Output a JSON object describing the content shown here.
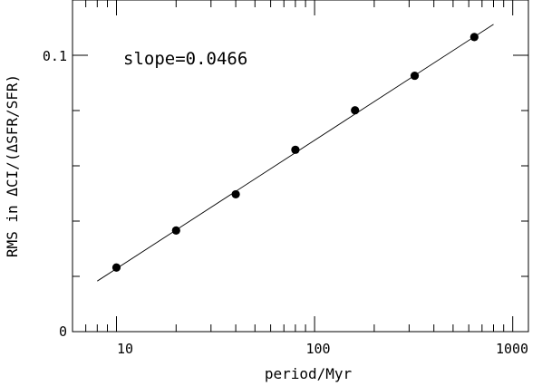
{
  "chart_data": {
    "type": "scatter",
    "xlabel": "period/Myr",
    "ylabel": "RMS in ΔCI/(ΔSFR/SFR)",
    "xscale": "log",
    "xlim": [
      6,
      1200
    ],
    "ylim": [
      0,
      0.12
    ],
    "x_ticklabels": [
      "10",
      "100",
      "1000"
    ],
    "y_ticklabels": [
      "0",
      "0.1"
    ],
    "annotation": "slope=0.0466",
    "points": [
      {
        "x": 10,
        "y": 0.0232
      },
      {
        "x": 20,
        "y": 0.0366
      },
      {
        "x": 40,
        "y": 0.0497
      },
      {
        "x": 80,
        "y": 0.0658
      },
      {
        "x": 160,
        "y": 0.0801
      },
      {
        "x": 320,
        "y": 0.0926
      },
      {
        "x": 640,
        "y": 0.1066
      }
    ],
    "fit_line": {
      "x": [
        8,
        800
      ],
      "y": [
        0.0183,
        0.1112
      ]
    },
    "grid": false,
    "legend": "none"
  }
}
